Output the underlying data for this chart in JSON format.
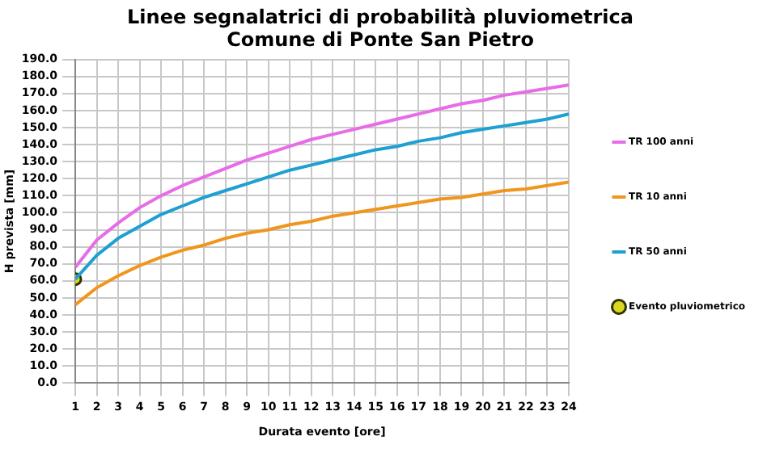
{
  "chart_data": {
    "type": "line",
    "title": "Linee segnalatrici di probabilità pluviometrica",
    "subtitle": "Comune di Ponte San Pietro",
    "xlabel": "Durata evento [ore]",
    "ylabel": "H prevista [mm]",
    "x": [
      1,
      2,
      3,
      4,
      5,
      6,
      7,
      8,
      9,
      10,
      11,
      12,
      13,
      14,
      15,
      16,
      17,
      18,
      19,
      20,
      21,
      22,
      23,
      24
    ],
    "xlim": [
      1,
      24
    ],
    "xticks": [
      1,
      2,
      3,
      4,
      5,
      6,
      7,
      8,
      9,
      10,
      11,
      12,
      13,
      14,
      15,
      16,
      17,
      18,
      19,
      20,
      21,
      22,
      23,
      24
    ],
    "ylim": [
      0,
      190
    ],
    "yticks": [
      {
        "value": 0,
        "label": "0.0"
      },
      {
        "value": 10,
        "label": "10.0"
      },
      {
        "value": 20,
        "label": "20.0"
      },
      {
        "value": 30,
        "label": "30.0"
      },
      {
        "value": 40,
        "label": "40.0"
      },
      {
        "value": 50,
        "label": "50.0"
      },
      {
        "value": 60,
        "label": "60.0"
      },
      {
        "value": 70,
        "label": "70.0"
      },
      {
        "value": 80,
        "label": "80.0"
      },
      {
        "value": 90,
        "label": "90.0"
      },
      {
        "value": 100,
        "label": "100.0"
      },
      {
        "value": 110,
        "label": "110.0"
      },
      {
        "value": 120,
        "label": "120.0"
      },
      {
        "value": 130,
        "label": "130.0"
      },
      {
        "value": 140,
        "label": "140.0"
      },
      {
        "value": 150,
        "label": "150.0"
      },
      {
        "value": 160,
        "label": "160.0"
      },
      {
        "value": 170,
        "label": "170.0"
      },
      {
        "value": 180,
        "label": "180.0"
      },
      {
        "value": 190,
        "label": "190.0"
      }
    ],
    "grid": true,
    "legend": "right",
    "marker": "none",
    "line_style": "solid",
    "series": [
      {
        "name": "TR 100 anni",
        "color": "#e86ce8",
        "values": [
          68,
          84,
          94,
          103,
          110,
          116,
          121,
          126,
          131,
          135,
          139,
          143,
          146,
          149,
          152,
          155,
          158,
          161,
          164,
          166,
          169,
          171,
          173,
          175
        ]
      },
      {
        "name": "TR 10 anni",
        "color": "#f0961e",
        "values": [
          46,
          56,
          63,
          69,
          74,
          78,
          81,
          85,
          88,
          90,
          93,
          95,
          98,
          100,
          102,
          104,
          106,
          108,
          109,
          111,
          113,
          114,
          116,
          118
        ]
      },
      {
        "name": "TR 50 anni",
        "color": "#1ea0d2",
        "values": [
          61,
          75,
          85,
          92,
          99,
          104,
          109,
          113,
          117,
          121,
          125,
          128,
          131,
          134,
          137,
          139,
          142,
          144,
          147,
          149,
          151,
          153,
          155,
          158
        ]
      },
      {
        "name": "Evento pluviometrico",
        "type": "scatter",
        "marker": "circle",
        "color": "#d8d820",
        "x": [
          1
        ],
        "values": [
          61
        ]
      }
    ]
  }
}
